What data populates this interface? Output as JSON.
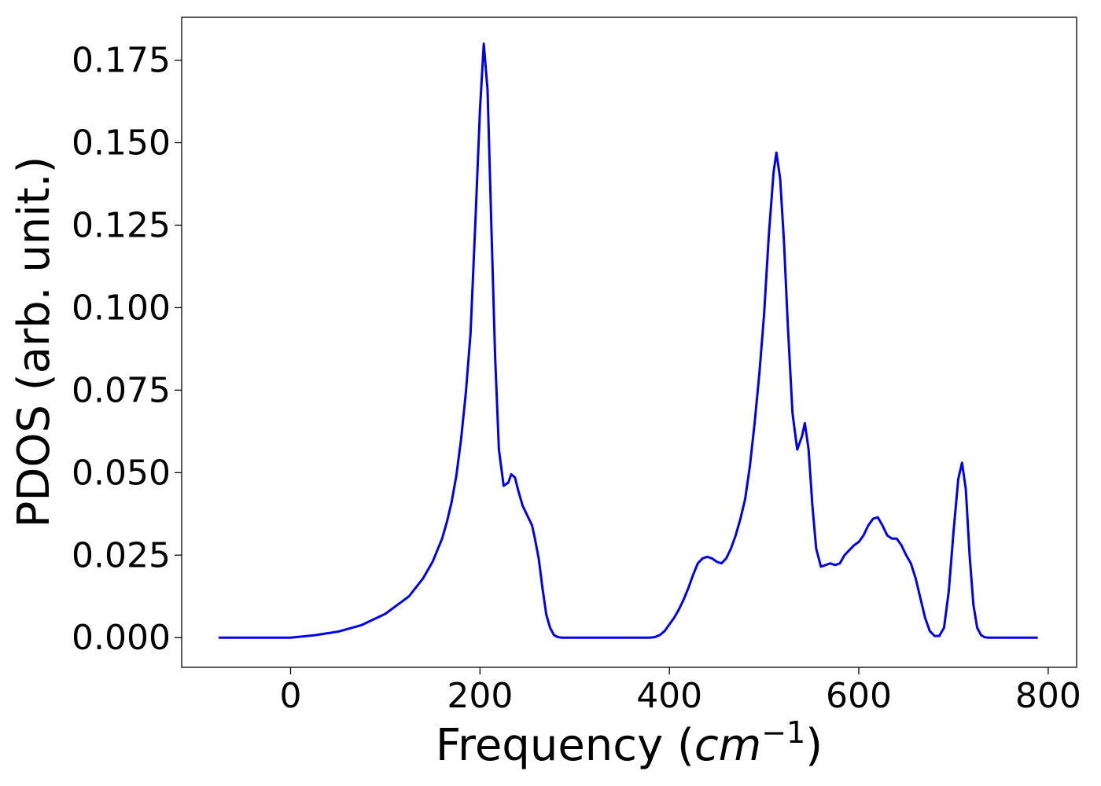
{
  "chart_data": {
    "type": "line",
    "title": "",
    "xlabel": "Frequency (cm⁻¹)",
    "xlabel_parts": {
      "prefix": "Frequency (",
      "unit": "cm",
      "exp": "−1",
      "suffix": ")"
    },
    "ylabel": "PDOS (arb. unit.)",
    "xlim": [
      -115,
      830
    ],
    "ylim": [
      -0.009,
      0.188
    ],
    "x_ticks": [
      0,
      200,
      400,
      600,
      800
    ],
    "x_tick_labels": [
      "0",
      "200",
      "400",
      "600",
      "800"
    ],
    "y_ticks": [
      0.0,
      0.025,
      0.05,
      0.075,
      0.1,
      0.125,
      0.15,
      0.175
    ],
    "y_tick_labels": [
      "0.000",
      "0.025",
      "0.050",
      "0.075",
      "0.100",
      "0.125",
      "0.150",
      "0.175"
    ],
    "grid": false,
    "legend": "none",
    "colors": {
      "line": "#0000ee"
    },
    "series": [
      {
        "x": [
          -75,
          -50,
          -25,
          0,
          25,
          50,
          75,
          100,
          125,
          140,
          150,
          160,
          165,
          170,
          175,
          180,
          185,
          190,
          195,
          200,
          204,
          208,
          212,
          216,
          220,
          225,
          230,
          233,
          237,
          240,
          245,
          250,
          255,
          258,
          262,
          266,
          270,
          274,
          278,
          282,
          286,
          290,
          300,
          350,
          380,
          385,
          390,
          395,
          400,
          405,
          410,
          415,
          420,
          425,
          430,
          435,
          440,
          445,
          450,
          455,
          460,
          465,
          470,
          475,
          480,
          485,
          490,
          495,
          500,
          505,
          510,
          513,
          517,
          521,
          525,
          530,
          535,
          540,
          543,
          547,
          551,
          555,
          560,
          565,
          570,
          575,
          580,
          585,
          590,
          595,
          600,
          605,
          610,
          615,
          620,
          625,
          630,
          635,
          640,
          645,
          650,
          655,
          660,
          665,
          670,
          675,
          680,
          685,
          690,
          695,
          700,
          705,
          709,
          713,
          717,
          721,
          725,
          729,
          733,
          737,
          745,
          760,
          788
        ],
        "y": [
          0,
          0,
          0,
          0,
          0.0007,
          0.0018,
          0.0038,
          0.0072,
          0.0125,
          0.018,
          0.023,
          0.03,
          0.035,
          0.041,
          0.049,
          0.06,
          0.074,
          0.092,
          0.125,
          0.16,
          0.18,
          0.166,
          0.125,
          0.085,
          0.057,
          0.046,
          0.047,
          0.0495,
          0.0485,
          0.045,
          0.04,
          0.037,
          0.034,
          0.03,
          0.024,
          0.015,
          0.007,
          0.003,
          0.0008,
          0.0002,
          0,
          0,
          0,
          0,
          0,
          0.0002,
          0.0008,
          0.002,
          0.004,
          0.006,
          0.0085,
          0.0115,
          0.015,
          0.019,
          0.0225,
          0.024,
          0.0245,
          0.024,
          0.023,
          0.0225,
          0.024,
          0.027,
          0.031,
          0.036,
          0.042,
          0.052,
          0.065,
          0.08,
          0.098,
          0.122,
          0.141,
          0.147,
          0.139,
          0.12,
          0.095,
          0.068,
          0.057,
          0.061,
          0.065,
          0.057,
          0.04,
          0.027,
          0.0215,
          0.022,
          0.0225,
          0.022,
          0.0225,
          0.025,
          0.0265,
          0.028,
          0.029,
          0.031,
          0.034,
          0.036,
          0.0365,
          0.034,
          0.031,
          0.03,
          0.03,
          0.028,
          0.025,
          0.0225,
          0.018,
          0.012,
          0.006,
          0.002,
          0.0005,
          0.0005,
          0.003,
          0.014,
          0.032,
          0.048,
          0.053,
          0.045,
          0.025,
          0.01,
          0.003,
          0.0008,
          0.0001,
          0,
          0,
          0,
          0
        ]
      }
    ]
  }
}
